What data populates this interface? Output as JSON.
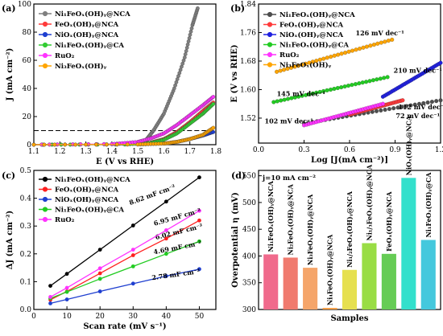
{
  "figure": {
    "panels": [
      {
        "id": "a",
        "label": "(a)"
      },
      {
        "id": "b",
        "label": "(b)"
      },
      {
        "id": "c",
        "label": "(c)"
      },
      {
        "id": "d",
        "label": "(d)"
      }
    ]
  },
  "chart_data": [
    {
      "panel": "a",
      "type": "line",
      "xlabel": "E (V vs RHE)",
      "ylabel": "J (mA cm⁻²)",
      "xlim": [
        1.1,
        1.8
      ],
      "ylim": [
        0,
        100
      ],
      "xticks": [
        "1.1",
        "1.2",
        "1.3",
        "1.4",
        "1.5",
        "1.6",
        "1.7",
        "1.8"
      ],
      "yticks": [
        "0",
        "20",
        "40",
        "60",
        "80",
        "100"
      ],
      "reference_line": {
        "y": 10,
        "style": "dashed"
      },
      "legend_position": "top-left",
      "series": [
        {
          "name": "Ni₁FeOₓ(OH)ᵧ@NCA",
          "color": "#7f7f7f",
          "marker": "circle",
          "x": [
            1.1,
            1.4,
            1.5,
            1.53,
            1.56,
            1.6,
            1.64,
            1.68,
            1.71,
            1.73
          ],
          "y": [
            0,
            0.3,
            1.2,
            3,
            10,
            22,
            40,
            62,
            85,
            97
          ]
        },
        {
          "name": "FeOₓ(OH)ᵧ@NCA",
          "color": "#ff3b3b",
          "marker": "circle",
          "x": [
            1.1,
            1.45,
            1.55,
            1.6,
            1.65,
            1.7,
            1.75,
            1.79
          ],
          "y": [
            0,
            0.2,
            1.5,
            4,
            9,
            16,
            24,
            30
          ]
        },
        {
          "name": "NiOₓ(OH)ᵧ@NCA",
          "color": "#1f3fd0",
          "marker": "circle",
          "x": [
            1.1,
            1.5,
            1.6,
            1.65,
            1.7,
            1.75,
            1.79
          ],
          "y": [
            0,
            0.1,
            0.8,
            2,
            4,
            6.5,
            9
          ]
        },
        {
          "name": "Ni₁FeOₓ(OH)ᵧ@CA",
          "color": "#33cc33",
          "marker": "circle",
          "x": [
            1.1,
            1.45,
            1.55,
            1.6,
            1.65,
            1.7,
            1.75,
            1.79
          ],
          "y": [
            0,
            0.2,
            1.2,
            3.5,
            8,
            15,
            22,
            29
          ]
        },
        {
          "name": "RuO₂",
          "color": "#ff33ff",
          "marker": "circle",
          "x": [
            1.1,
            1.4,
            1.5,
            1.55,
            1.6,
            1.65,
            1.7,
            1.75,
            1.79
          ],
          "y": [
            0,
            0.5,
            2,
            4.5,
            8,
            14,
            21,
            28,
            34
          ]
        },
        {
          "name": "Ni₃FeOₓ(OH)ᵧ",
          "color": "#ffa500",
          "marker": "circle",
          "x": [
            1.1,
            1.5,
            1.6,
            1.65,
            1.7,
            1.75,
            1.79
          ],
          "y": [
            0,
            0.2,
            0.8,
            2,
            4,
            7,
            12
          ]
        }
      ]
    },
    {
      "panel": "b",
      "type": "scatter",
      "xlabel": "Log [J(mA cm⁻²)]",
      "ylabel": "E (V vs RHE)",
      "xlim": [
        0.0,
        1.2
      ],
      "ylim": [
        1.45,
        1.84
      ],
      "xticks": [
        "0.0",
        "0.3",
        "0.6",
        "0.9",
        "1.2"
      ],
      "yticks": [
        "1.52",
        "1.60",
        "1.68",
        "1.76",
        "1.84"
      ],
      "legend_position": "top-left",
      "series": [
        {
          "name": "Ni₁FeOₓ(OH)ᵧ@NCA",
          "color": "#4d4d4d",
          "x": [
            0.3,
            1.2
          ],
          "y": [
            1.505,
            1.57
          ],
          "tafel": "72 mV dec⁻¹"
        },
        {
          "name": "FeOₓ(OH)ᵧ@NCA",
          "color": "#ff3b3b",
          "x": [
            0.6,
            0.95
          ],
          "y": [
            1.53,
            1.57
          ],
          "tafel": "112 mV dec⁻¹"
        },
        {
          "name": "NiOₓ(OH)ᵧ@NCA",
          "color": "#2020e0",
          "x": [
            0.82,
            1.2
          ],
          "y": [
            1.58,
            1.675
          ],
          "tafel": "210 mV dec⁻¹"
        },
        {
          "name": "Ni₁FeOₓ(OH)ᵧ@CA",
          "color": "#22cc22",
          "x": [
            0.1,
            0.85
          ],
          "y": [
            1.565,
            1.635
          ],
          "tafel": "145 mV dec⁻¹"
        },
        {
          "name": "RuO₂",
          "color": "#ff33ff",
          "x": [
            0.3,
            0.82
          ],
          "y": [
            1.5,
            1.56
          ],
          "tafel": "102 mV dec⁻¹"
        },
        {
          "name": "Ni₃FeOₓ(OH)ᵧ",
          "color": "#ffa500",
          "x": [
            0.12,
            0.88
          ],
          "y": [
            1.65,
            1.74
          ],
          "tafel": "126 mV dec⁻¹"
        }
      ]
    },
    {
      "panel": "c",
      "type": "line",
      "xlabel": "Scan rate (mV s⁻¹)",
      "ylabel": "ΔJ (mA cm⁻²)",
      "xlim": [
        0,
        55
      ],
      "ylim": [
        0,
        0.5
      ],
      "xticks": [
        "0",
        "10",
        "20",
        "30",
        "40",
        "50"
      ],
      "yticks": [
        "0.0",
        "0.1",
        "0.2",
        "0.3",
        "0.4",
        "0.5"
      ],
      "x": [
        5,
        10,
        20,
        30,
        40,
        50
      ],
      "legend_position": "top-left",
      "series": [
        {
          "name": "Ni₁FeOₓ(OH)ᵧ@NCA",
          "color": "#000000",
          "y": [
            0.085,
            0.128,
            0.215,
            0.302,
            0.388,
            0.475
          ],
          "cdl": "8.62 mF cm⁻²"
        },
        {
          "name": "FeOₓ(OH)ᵧ@NCA",
          "color": "#ff2020",
          "y": [
            0.035,
            0.065,
            0.13,
            0.195,
            0.255,
            0.32
          ],
          "cdl": "6.02 mF cm⁻²"
        },
        {
          "name": "NiOₓ(OH)ᵧ@NCA",
          "color": "#1f3fd0",
          "y": [
            0.022,
            0.036,
            0.065,
            0.093,
            0.12,
            0.145
          ],
          "cdl": "2.78 mF cm⁻²"
        },
        {
          "name": "Ni₁FeOₓ(OH)ᵧ@CA",
          "color": "#22cc22",
          "y": [
            0.04,
            0.063,
            0.11,
            0.155,
            0.2,
            0.245
          ],
          "cdl": "4.69 mF cm⁻²"
        },
        {
          "name": "RuO₂",
          "color": "#ff33ff",
          "y": [
            0.045,
            0.078,
            0.148,
            0.215,
            0.285,
            0.355
          ],
          "cdl": "6.95 mF cm⁻²"
        }
      ]
    },
    {
      "panel": "d",
      "type": "bar",
      "xlabel": "Samples",
      "ylabel": "Overpotential η (mV)",
      "ylim": [
        300,
        560
      ],
      "yticks": [
        "300",
        "350",
        "400",
        "450",
        "500",
        "550"
      ],
      "annotation": "j=10 mA cm⁻²",
      "categories": [
        "Ni₁FeOₓ(OH)ᵧ@NCA",
        "Ni₂FeOₓ(OH)ᵧ@NCA",
        "Ni₃FeOₓ(OH)ᵧ@NCA",
        "Ni₄FeOₓ(OH)ᵧ@NCA",
        "Ni₁/₂FeOₓ(OH)ᵧ@NCA",
        "Ni₁/₃FeOₓ(OH)ᵧ@NCA",
        "FeOₓ(OH)ᵧ@NCA",
        "NiOₓ(OH)ᵧ@NCA",
        "Ni₁FeOₓ(OH)ᵧ@CA"
      ],
      "values": [
        403,
        397,
        378,
        303,
        374,
        424,
        404,
        546,
        430
      ],
      "colors": [
        "#f06a8c",
        "#f07a6e",
        "#f5a56a",
        "#f5a14a",
        "#e6e04f",
        "#99dd44",
        "#66cc55",
        "#33e0cc",
        "#44c8dd"
      ]
    }
  ]
}
